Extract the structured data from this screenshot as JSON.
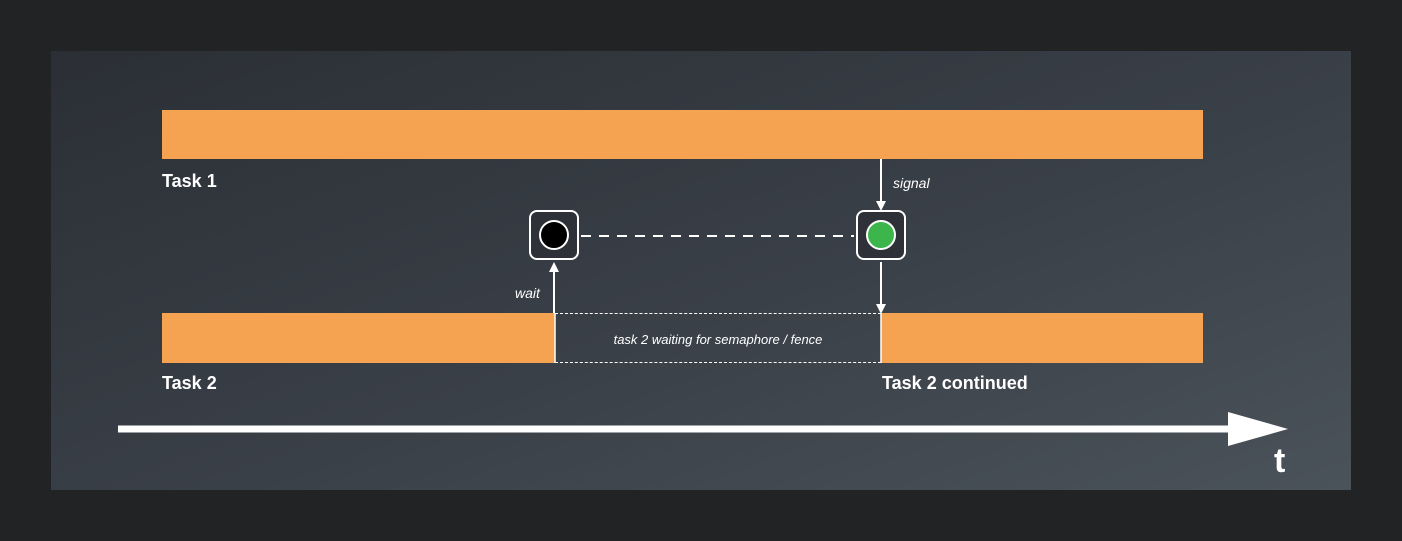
{
  "tasks": {
    "task1_label": "Task 1",
    "task2_label": "Task 2",
    "task2_continued_label": "Task 2 continued"
  },
  "events": {
    "signal_label": "signal",
    "wait_label": "wait",
    "waiting_text": "task 2 waiting for semaphore / fence"
  },
  "semaphore": {
    "unsignaled_color": "#000000",
    "signaled_color": "#3cb54a"
  },
  "colors": {
    "task_bar": "#f5a350"
  },
  "time_axis": {
    "label": "t"
  }
}
